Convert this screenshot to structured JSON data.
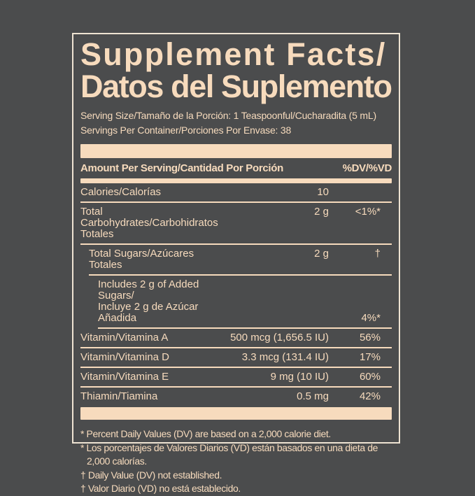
{
  "label": {
    "title_line1": "Supplement Facts/",
    "title_line2": "Datos del Suplemento",
    "serving_size": "Serving Size/Tamaño de la Porción: 1 Teaspoonful/Cucharadita (5 mL)",
    "servings_per_container": "Servings Per Container/Porciones Por Envase: 38",
    "header": {
      "amount_label": "Amount Per Serving/Cantidad Por Porción",
      "dv_label": "%DV/%VD"
    },
    "rows": [
      {
        "name": "Calories/Calorías",
        "amount": "10",
        "dv": "",
        "indent": 0
      },
      {
        "name": "Total Carbohydrates/Carbohidratos Totales",
        "amount": "2 g",
        "dv": "<1%*",
        "indent": 0
      },
      {
        "name": "Total Sugars/Azúcares Totales",
        "amount": "2 g",
        "dv": "†",
        "indent": 1
      },
      {
        "name_line1": "Includes 2 g of Added Sugars/",
        "name_line2": "Incluye 2 g de Azúcar Añadida",
        "amount": "",
        "dv": "4%*",
        "indent": 2
      },
      {
        "name": "Vitamin/Vitamina A",
        "amount": "500 mcg (1,656.5 IU)",
        "dv": "56%",
        "indent": 0
      },
      {
        "name": "Vitamin/Vitamina D",
        "amount": "3.3 mcg (131.4 IU)",
        "dv": "17%",
        "indent": 0
      },
      {
        "name": "Vitamin/Vitamina E",
        "amount": "9 mg (10 IU)",
        "dv": "60%",
        "indent": 0
      },
      {
        "name": "Thiamin/Tiamina",
        "amount": "0.5 mg",
        "dv": "42%",
        "indent": 0
      }
    ],
    "footnotes": [
      "* Percent Daily Values (DV) are based on a 2,000 calorie diet.",
      "* Los porcentajes de Valores Diarios (VD) están basados en una dieta de 2,000 calorías.",
      "† Daily Value (DV) not established.",
      "† Valor Diario (VD) no está establecido."
    ],
    "colors": {
      "cream": "#f7dbbd",
      "background": "#4b4c4d"
    }
  }
}
